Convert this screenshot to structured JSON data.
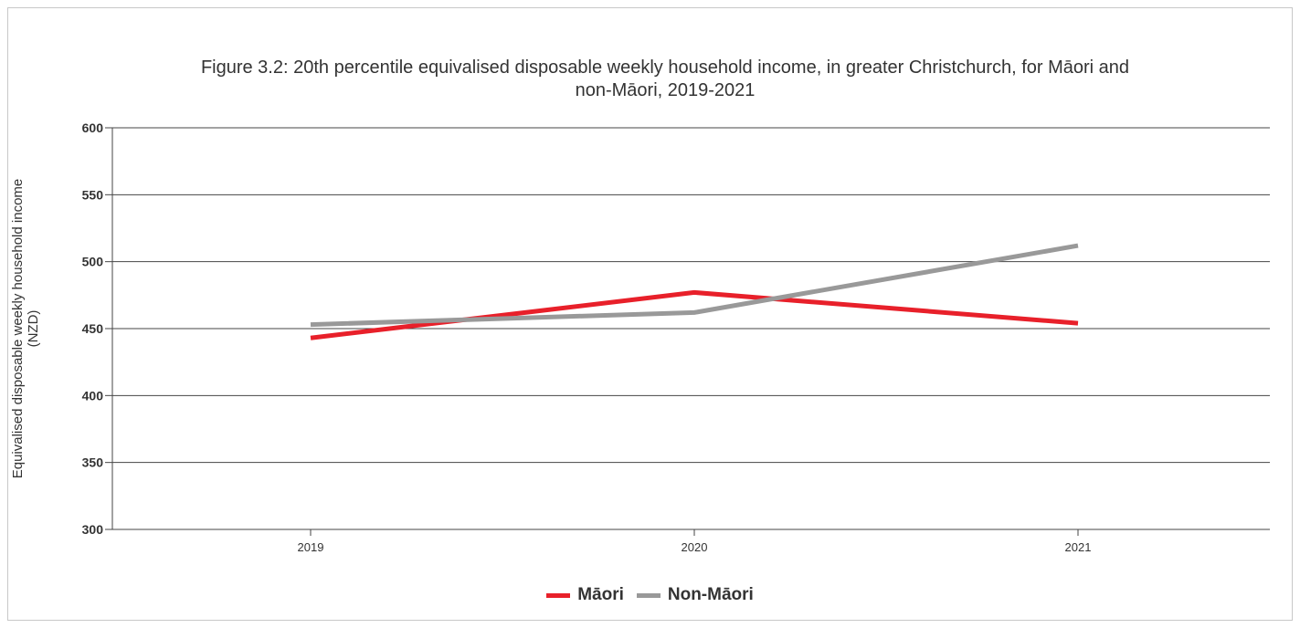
{
  "chart_data": {
    "type": "line",
    "title_lines": [
      "Figure 3.2: 20th percentile equivalised disposable weekly household income, in greater Christchurch, for Māori and",
      "non-Māori, 2019-2021"
    ],
    "ylabel_lines": [
      "Equivalised disposable weekly household income",
      "(NZD)"
    ],
    "xlabel": "",
    "categories": [
      "2019",
      "2020",
      "2021"
    ],
    "ylim": [
      300,
      600
    ],
    "yticks": [
      "300",
      "350",
      "400",
      "450",
      "500",
      "550",
      "600"
    ],
    "grid": true,
    "legend_position": "bottom",
    "series": [
      {
        "name": "Māori",
        "color": "#e8202a",
        "values": [
          443,
          477,
          454
        ]
      },
      {
        "name": "Non-Māori",
        "color": "#999999",
        "values": [
          453,
          462,
          512
        ]
      }
    ]
  }
}
